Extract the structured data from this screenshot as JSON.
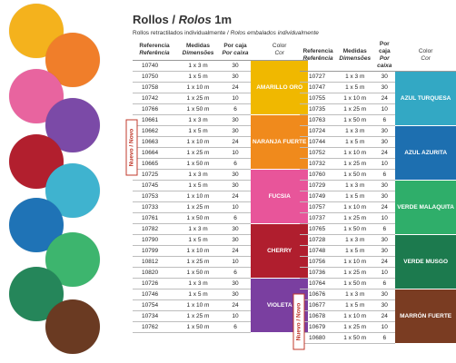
{
  "title": {
    "main": "Rollos / ",
    "italic": "Rolos",
    "size": " 1m"
  },
  "subtitle": {
    "normal": "Rollos retractilados individualmente / ",
    "italic": "Rolos embalados individualmente"
  },
  "new_label": "Nuevo / Novo",
  "headers": {
    "ref": "Referencia",
    "ref_it": "Referência",
    "dim": "Medidas",
    "dim_it": "Dimensões",
    "box": "Por caja",
    "box_it": "Por caixa",
    "color": "Color",
    "color_it": "Cor"
  },
  "left_groups": [
    {
      "color_name": "AMARILLO ORO",
      "color_hex": "#f0b800",
      "rows": [
        {
          "ref": "10740",
          "dim": "1 x 3 m",
          "qty": "30"
        },
        {
          "ref": "10750",
          "dim": "1 x 5 m",
          "qty": "30"
        },
        {
          "ref": "10758",
          "dim": "1 x 10 m",
          "qty": "24"
        },
        {
          "ref": "10742",
          "dim": "1 x 25 m",
          "qty": "10"
        },
        {
          "ref": "10766",
          "dim": "1 x 50 m",
          "qty": "6"
        }
      ]
    },
    {
      "color_name": "NARANJA FUERTE",
      "color_hex": "#f08a1c",
      "rows": [
        {
          "ref": "10661",
          "dim": "1 x 3 m",
          "qty": "30"
        },
        {
          "ref": "10662",
          "dim": "1 x 5 m",
          "qty": "30"
        },
        {
          "ref": "10663",
          "dim": "1 x 10 m",
          "qty": "24"
        },
        {
          "ref": "10664",
          "dim": "1 x 25 m",
          "qty": "10"
        },
        {
          "ref": "10665",
          "dim": "1 x 50 m",
          "qty": "6"
        }
      ]
    },
    {
      "color_name": "FUCSIA",
      "color_hex": "#e8559a",
      "rows": [
        {
          "ref": "10725",
          "dim": "1 x 3 m",
          "qty": "30"
        },
        {
          "ref": "10745",
          "dim": "1 x 5 m",
          "qty": "30"
        },
        {
          "ref": "10753",
          "dim": "1 x 10 m",
          "qty": "24"
        },
        {
          "ref": "10733",
          "dim": "1 x 25 m",
          "qty": "10"
        },
        {
          "ref": "10761",
          "dim": "1 x 50 m",
          "qty": "6"
        }
      ]
    },
    {
      "color_name": "CHERRY",
      "color_hex": "#b01e2e",
      "rows": [
        {
          "ref": "10782",
          "dim": "1 x 3 m",
          "qty": "30"
        },
        {
          "ref": "10790",
          "dim": "1 x 5 m",
          "qty": "30"
        },
        {
          "ref": "10799",
          "dim": "1 x 10 m",
          "qty": "24"
        },
        {
          "ref": "10812",
          "dim": "1 x 25 m",
          "qty": "10"
        },
        {
          "ref": "10820",
          "dim": "1 x 50 m",
          "qty": "6"
        }
      ]
    },
    {
      "color_name": "VIOLETA",
      "color_hex": "#7a3fa0",
      "rows": [
        {
          "ref": "10726",
          "dim": "1 x 3 m",
          "qty": "30"
        },
        {
          "ref": "10746",
          "dim": "1 x 5 m",
          "qty": "30"
        },
        {
          "ref": "10754",
          "dim": "1 x 10 m",
          "qty": "24"
        },
        {
          "ref": "10734",
          "dim": "1 x 25 m",
          "qty": "10"
        },
        {
          "ref": "10762",
          "dim": "1 x 50 m",
          "qty": "6"
        }
      ]
    }
  ],
  "right_groups": [
    {
      "color_name": "AZUL TURQUESA",
      "color_hex": "#33a8c4",
      "rows": [
        {
          "ref": "10727",
          "dim": "1 x 3 m",
          "qty": "30"
        },
        {
          "ref": "10747",
          "dim": "1 x 5 m",
          "qty": "30"
        },
        {
          "ref": "10755",
          "dim": "1 x 10 m",
          "qty": "24"
        },
        {
          "ref": "10735",
          "dim": "1 x 25 m",
          "qty": "10"
        },
        {
          "ref": "10763",
          "dim": "1 x 50 m",
          "qty": "6"
        }
      ]
    },
    {
      "color_name": "AZUL AZURITA",
      "color_hex": "#1d6fb0",
      "rows": [
        {
          "ref": "10724",
          "dim": "1 x 3 m",
          "qty": "30"
        },
        {
          "ref": "10744",
          "dim": "1 x 5 m",
          "qty": "30"
        },
        {
          "ref": "10752",
          "dim": "1 x 10 m",
          "qty": "24"
        },
        {
          "ref": "10732",
          "dim": "1 x 25 m",
          "qty": "10"
        },
        {
          "ref": "10760",
          "dim": "1 x 50 m",
          "qty": "6"
        }
      ]
    },
    {
      "color_name": "VERDE MALAQUITA",
      "color_hex": "#2fae6a",
      "rows": [
        {
          "ref": "10729",
          "dim": "1 x 3 m",
          "qty": "30"
        },
        {
          "ref": "10749",
          "dim": "1 x 5 m",
          "qty": "30"
        },
        {
          "ref": "10757",
          "dim": "1 x 10 m",
          "qty": "24"
        },
        {
          "ref": "10737",
          "dim": "1 x 25 m",
          "qty": "10"
        },
        {
          "ref": "10765",
          "dim": "1 x 50 m",
          "qty": "6"
        }
      ]
    },
    {
      "color_name": "VERDE MUSGO",
      "color_hex": "#1c7a4e",
      "rows": [
        {
          "ref": "10728",
          "dim": "1 x 3 m",
          "qty": "30"
        },
        {
          "ref": "10748",
          "dim": "1 x 5 m",
          "qty": "30"
        },
        {
          "ref": "10756",
          "dim": "1 x 10 m",
          "qty": "24"
        },
        {
          "ref": "10736",
          "dim": "1 x 25 m",
          "qty": "10"
        },
        {
          "ref": "10764",
          "dim": "1 x 50 m",
          "qty": "6"
        }
      ]
    },
    {
      "color_name": "MARRÓN FUERTE",
      "color_hex": "#7a3c22",
      "rows": [
        {
          "ref": "10676",
          "dim": "1 x 3 m",
          "qty": "30"
        },
        {
          "ref": "10677",
          "dim": "1 x 5 m",
          "qty": "30"
        },
        {
          "ref": "10678",
          "dim": "1 x 10 m",
          "qty": "24"
        },
        {
          "ref": "10679",
          "dim": "1 x 25 m",
          "qty": "10"
        },
        {
          "ref": "10680",
          "dim": "1 x 50 m",
          "qty": "6"
        }
      ]
    }
  ],
  "swatches": [
    {
      "name": "amarillo-oro",
      "hex": "#f4b21d"
    },
    {
      "name": "naranja",
      "hex": "#f07e2a"
    },
    {
      "name": "fucsia",
      "hex": "#e8649f"
    },
    {
      "name": "violeta",
      "hex": "#7b4aa7"
    },
    {
      "name": "cherry",
      "hex": "#b21f2e"
    },
    {
      "name": "azul-turquesa",
      "hex": "#3fb3cf"
    },
    {
      "name": "azul-azurita",
      "hex": "#1f73b6"
    },
    {
      "name": "verde-malaquita",
      "hex": "#3db56e"
    },
    {
      "name": "verde-musgo",
      "hex": "#25865a"
    },
    {
      "name": "marron",
      "hex": "#6a3a22"
    }
  ]
}
